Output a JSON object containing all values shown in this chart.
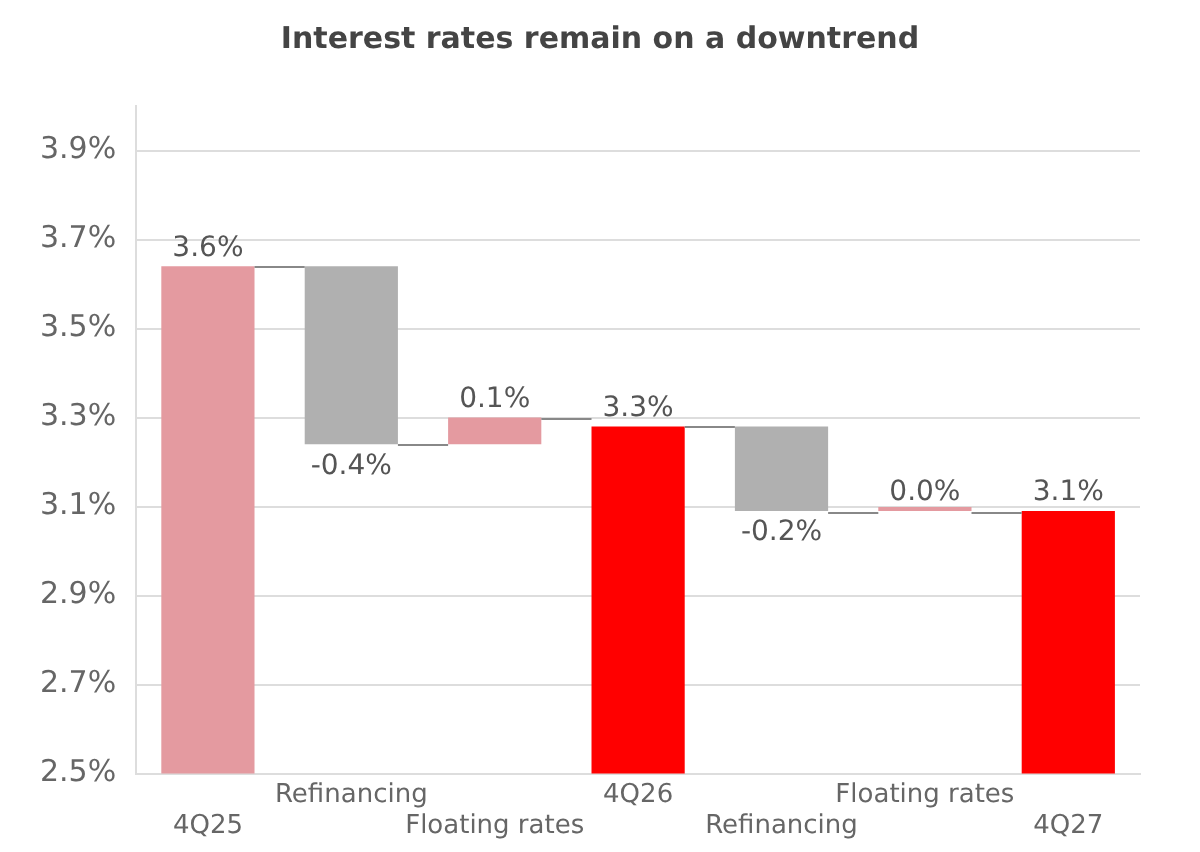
{
  "chart_data": {
    "type": "bar",
    "title": "Interest rates remain on a downtrend",
    "categories": [
      "4Q25",
      "Refinancing",
      "Floating rates",
      "4Q26",
      "Refinancing",
      "Floating rates",
      "4Q27"
    ],
    "values": [
      3.64,
      -0.4,
      0.06,
      3.28,
      -0.19,
      0,
      3.09
    ],
    "base": [
      0,
      3.64,
      3.24,
      0,
      3.28,
      3.09,
      0
    ],
    "colors": [
      "#e49aa0",
      "#b0b0b0",
      "#e49aa0",
      "#ff0000",
      "#b0b0b0",
      "#e49aa0",
      "#ff0000"
    ],
    "value_labels": [
      "3.6%",
      "-0.4%",
      "0.1%",
      "3.3%",
      "-0.2%",
      "0.0%",
      "3.1%"
    ],
    "ylim": [
      2.5,
      4.0
    ],
    "yticks": [
      {
        "value": 2.5,
        "label": "2.5%"
      },
      {
        "value": 2.7,
        "label": "2.7%"
      },
      {
        "value": 2.9,
        "label": "2.9%"
      },
      {
        "value": 3.1,
        "label": "3.1%"
      },
      {
        "value": 3.3,
        "label": "3.3%"
      },
      {
        "value": 3.5,
        "label": "3.5%"
      },
      {
        "value": 3.7,
        "label": "3.7%"
      },
      {
        "value": 3.9,
        "label": "3.9%"
      }
    ],
    "grid": "y",
    "legend": false
  }
}
